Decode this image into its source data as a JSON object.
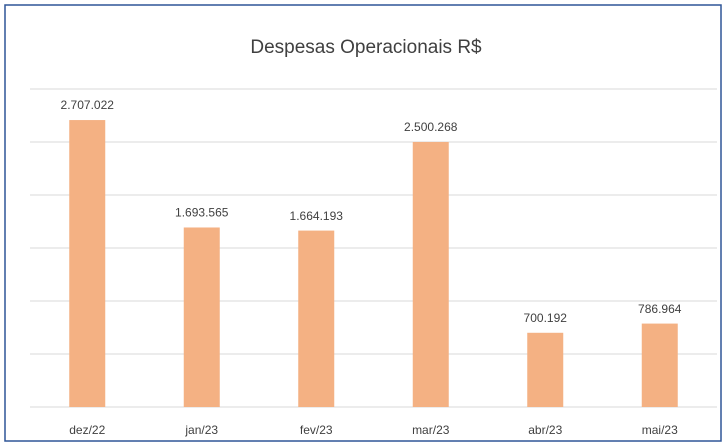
{
  "chart_data": {
    "type": "bar",
    "title": "Despesas Operacionais R$",
    "categories": [
      "dez/22",
      "jan/23",
      "fev/23",
      "mar/23",
      "abr/23",
      "mai/23"
    ],
    "values": [
      2707022,
      1693565,
      1664193,
      2500268,
      700192,
      786964
    ],
    "value_labels": [
      "2.707.022",
      "1.693.565",
      "1.664.193",
      "2.500.268",
      "700.192",
      "786.964"
    ],
    "color": "#f4b183",
    "ylim": [
      0,
      3000000
    ],
    "yticks": [
      0,
      500000,
      1000000,
      1500000,
      2000000,
      2500000,
      3000000
    ],
    "grid": true
  }
}
